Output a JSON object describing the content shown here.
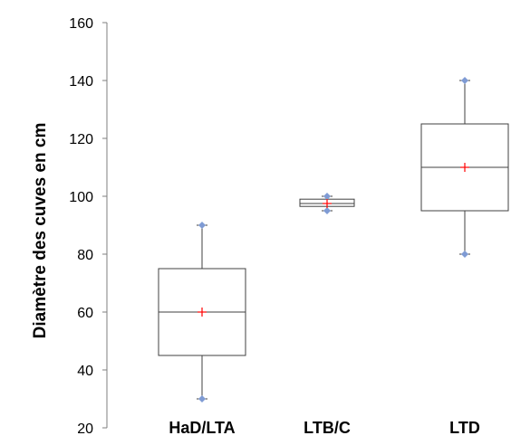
{
  "chart_data": {
    "type": "box",
    "title": "",
    "xlabel": "",
    "ylabel": "Diamètre des cuves en cm",
    "ylim": [
      20,
      160
    ],
    "yticks": [
      20,
      40,
      60,
      80,
      100,
      120,
      140,
      160
    ],
    "grid": false,
    "legend": "none",
    "categories": [
      "HaD/LTA",
      "LTB/C",
      "LTD"
    ],
    "boxes": [
      {
        "category": "HaD/LTA",
        "min": 30,
        "q1": 45,
        "median": 60,
        "q3": 75,
        "max": 90,
        "mean": 60
      },
      {
        "category": "LTB/C",
        "min": 95,
        "q1": 96.5,
        "median": 97.5,
        "q3": 99,
        "max": 100,
        "mean": 97.5
      },
      {
        "category": "LTD",
        "min": 80,
        "q1": 95,
        "median": 110,
        "q3": 125,
        "max": 140,
        "mean": 110
      }
    ],
    "colors": {
      "box": "#404040",
      "whisker_marker": "#7f9bd4",
      "mean_marker": "#ff0000"
    }
  }
}
